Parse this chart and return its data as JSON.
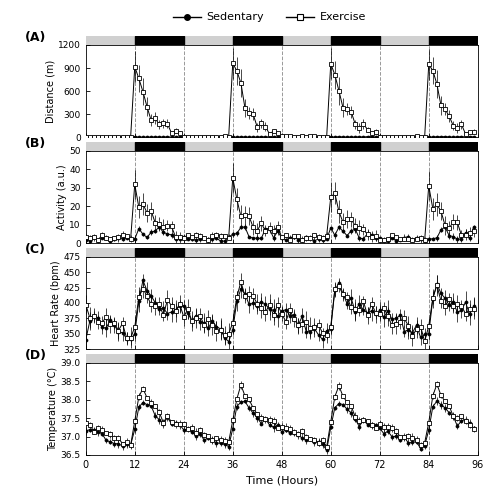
{
  "title": "",
  "dark_phase_starts": [
    12,
    36,
    60,
    84
  ],
  "dark_phase_ends": [
    24,
    48,
    72,
    96
  ],
  "light_phase_starts": [
    0,
    24,
    48,
    72
  ],
  "light_phase_ends": [
    12,
    36,
    60,
    84
  ],
  "dashed_lines": [
    12,
    24,
    36,
    48,
    60,
    72,
    84
  ],
  "panel_labels": [
    "(A)",
    "(B)",
    "(C)",
    "(D)"
  ],
  "xlabel": "Time (Hours)",
  "ylabels": [
    "Distance (m)",
    "Activity (a.u.)",
    "Heart Rate (bpm)",
    "Temperature (°C)"
  ],
  "yticks_A": [
    0,
    300,
    600,
    900,
    1200
  ],
  "ylim_A": [
    0,
    1200
  ],
  "yticks_B": [
    0,
    10,
    20,
    30,
    40,
    50
  ],
  "ylim_B": [
    0,
    50
  ],
  "yticks_C": [
    325,
    350,
    375,
    400,
    425,
    450,
    475
  ],
  "ylim_C": [
    325,
    475
  ],
  "yticks_D": [
    36.5,
    37.0,
    37.5,
    38.0,
    38.5,
    39.0
  ],
  "ylim_D": [
    36.5,
    39.0
  ],
  "xticks": [
    0,
    12,
    24,
    36,
    48,
    60,
    72,
    84,
    96
  ],
  "dark_bar_color": "#000000",
  "light_bar_color": "#d0d0d0"
}
